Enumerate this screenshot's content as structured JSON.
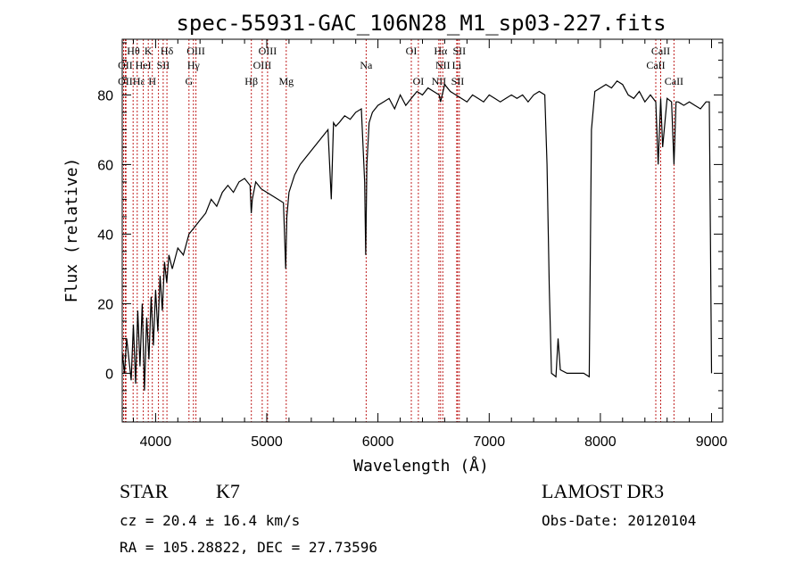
{
  "chart_data": {
    "type": "line",
    "title": "spec-55931-GAC_106N28_M1_sp03-227.fits",
    "xlabel": "Wavelength (Å)",
    "ylabel": "Flux (relative)",
    "xlim": [
      3700,
      9100
    ],
    "ylim": [
      -14,
      96
    ],
    "xticks": [
      4000,
      5000,
      6000,
      7000,
      8000,
      9000
    ],
    "yticks": [
      0,
      20,
      40,
      60,
      80
    ],
    "grid": false,
    "series": [
      {
        "x": [
          3700,
          3720,
          3740,
          3760,
          3780,
          3800,
          3820,
          3840,
          3860,
          3880,
          3900,
          3920,
          3940,
          3960,
          3980,
          4000,
          4020,
          4040,
          4060,
          4080,
          4100,
          4120,
          4150,
          4200,
          4250,
          4300,
          4350,
          4400,
          4450,
          4500,
          4550,
          4600,
          4650,
          4700,
          4750,
          4800,
          4850,
          4860,
          4870,
          4900,
          4950,
          5000,
          5050,
          5100,
          5150,
          5170,
          5180,
          5200,
          5250,
          5300,
          5350,
          5400,
          5450,
          5500,
          5550,
          5580,
          5600,
          5620,
          5650,
          5700,
          5750,
          5800,
          5850,
          5880,
          5890,
          5900,
          5920,
          5950,
          6000,
          6050,
          6100,
          6150,
          6200,
          6250,
          6300,
          6350,
          6400,
          6450,
          6500,
          6550,
          6563,
          6600,
          6650,
          6700,
          6750,
          6800,
          6850,
          6900,
          6950,
          7000,
          7050,
          7100,
          7150,
          7200,
          7250,
          7300,
          7350,
          7400,
          7450,
          7500,
          7520,
          7540,
          7560,
          7600,
          7620,
          7640,
          7700,
          7800,
          7850,
          7900,
          7920,
          7950,
          8000,
          8050,
          8100,
          8150,
          8200,
          8250,
          8300,
          8350,
          8400,
          8450,
          8498,
          8520,
          8542,
          8560,
          8600,
          8640,
          8662,
          8680,
          8700,
          8750,
          8800,
          8850,
          8900,
          8950,
          8980,
          9000
        ],
        "y": [
          6,
          0,
          10,
          4,
          -2,
          14,
          -3,
          18,
          2,
          20,
          -5,
          16,
          4,
          22,
          8,
          24,
          12,
          28,
          18,
          32,
          26,
          34,
          30,
          36,
          34,
          40,
          42,
          44,
          46,
          50,
          48,
          52,
          54,
          52,
          55,
          56,
          54,
          46,
          50,
          55,
          53,
          52,
          51,
          50,
          49,
          30,
          45,
          52,
          57,
          60,
          62,
          64,
          66,
          68,
          70,
          50,
          72,
          71,
          72,
          74,
          73,
          75,
          76,
          55,
          34,
          60,
          72,
          75,
          77,
          78,
          79,
          76,
          80,
          77,
          79,
          81,
          80,
          82,
          81,
          80,
          78,
          83,
          81,
          80,
          79,
          78,
          80,
          79,
          78,
          80,
          79,
          78,
          79,
          80,
          79,
          80,
          78,
          80,
          81,
          80,
          60,
          25,
          0,
          -1,
          10,
          1,
          0,
          0,
          0,
          -1,
          70,
          81,
          82,
          83,
          82,
          84,
          83,
          80,
          79,
          81,
          78,
          80,
          78,
          60,
          79,
          65,
          79,
          78,
          60,
          78,
          78,
          77,
          78,
          77,
          76,
          78,
          78,
          0
        ]
      }
    ],
    "lines": [
      {
        "x": 3712,
        "color": "#c02020"
      },
      {
        "x": 3727,
        "color": "#c02020"
      },
      {
        "x": 3734,
        "color": "#c02020"
      },
      {
        "x": 3798,
        "color": "#c02020"
      },
      {
        "x": 3835,
        "color": "#c02020"
      },
      {
        "x": 3889,
        "color": "#c02020"
      },
      {
        "x": 3934,
        "color": "#c02020"
      },
      {
        "x": 3970,
        "color": "#c02020"
      },
      {
        "x": 4026,
        "color": "#c02020"
      },
      {
        "x": 4068,
        "color": "#c02020"
      },
      {
        "x": 4102,
        "color": "#c02020"
      },
      {
        "x": 4300,
        "color": "#c02020"
      },
      {
        "x": 4340,
        "color": "#c02020"
      },
      {
        "x": 4363,
        "color": "#c02020"
      },
      {
        "x": 4861,
        "color": "#c02020"
      },
      {
        "x": 4959,
        "color": "#c02020"
      },
      {
        "x": 5007,
        "color": "#c02020"
      },
      {
        "x": 5175,
        "color": "#c02020"
      },
      {
        "x": 5894,
        "color": "#c02020"
      },
      {
        "x": 6300,
        "color": "#c02020"
      },
      {
        "x": 6363,
        "color": "#c02020"
      },
      {
        "x": 6548,
        "color": "#c02020"
      },
      {
        "x": 6563,
        "color": "#c02020"
      },
      {
        "x": 6583,
        "color": "#c02020"
      },
      {
        "x": 6708,
        "color": "#c02020"
      },
      {
        "x": 6716,
        "color": "#c02020"
      },
      {
        "x": 6731,
        "color": "#c02020"
      },
      {
        "x": 8498,
        "color": "#c02020"
      },
      {
        "x": 8542,
        "color": "#c02020"
      },
      {
        "x": 8662,
        "color": "#c02020"
      }
    ],
    "line_labels": [
      {
        "text": "Hθ",
        "x": 3800,
        "row": 1
      },
      {
        "text": "K",
        "x": 3934,
        "row": 1
      },
      {
        "text": "Hδ",
        "x": 4102,
        "row": 1
      },
      {
        "text": "OIII",
        "x": 4363,
        "row": 1
      },
      {
        "text": "OIII",
        "x": 5007,
        "row": 1
      },
      {
        "text": "OI",
        "x": 6300,
        "row": 1
      },
      {
        "text": "Hα",
        "x": 6563,
        "row": 1
      },
      {
        "text": "SII",
        "x": 6731,
        "row": 1
      },
      {
        "text": "CaII",
        "x": 8542,
        "row": 1
      },
      {
        "text": "OII",
        "x": 3727,
        "row": 2
      },
      {
        "text": "HeI",
        "x": 3889,
        "row": 2
      },
      {
        "text": "SII",
        "x": 4068,
        "row": 2
      },
      {
        "text": "Hγ",
        "x": 4340,
        "row": 2
      },
      {
        "text": "OIII",
        "x": 4959,
        "row": 2
      },
      {
        "text": "Na",
        "x": 5894,
        "row": 2
      },
      {
        "text": "NII",
        "x": 6583,
        "row": 2
      },
      {
        "text": "Li",
        "x": 6708,
        "row": 2
      },
      {
        "text": "CaII",
        "x": 8498,
        "row": 2
      },
      {
        "text": "OII",
        "x": 3727,
        "row": 3
      },
      {
        "text": "Hε",
        "x": 3850,
        "row": 3
      },
      {
        "text": "H",
        "x": 3970,
        "row": 3
      },
      {
        "text": "G",
        "x": 4300,
        "row": 3
      },
      {
        "text": "Hβ",
        "x": 4861,
        "row": 3
      },
      {
        "text": "Mg",
        "x": 5175,
        "row": 3
      },
      {
        "text": "OI",
        "x": 6363,
        "row": 3
      },
      {
        "text": "NII",
        "x": 6548,
        "row": 3
      },
      {
        "text": "SII",
        "x": 6716,
        "row": 3
      },
      {
        "text": "CaII",
        "x": 8662,
        "row": 3
      }
    ]
  },
  "info": {
    "object_class": "STAR",
    "subclass": "K7",
    "survey": "LAMOST DR3",
    "redshift": "cz = 20.4 ± 16.4 km/s",
    "obs_date": "Obs-Date: 20120104",
    "coords": "RA = 105.28822, DEC =  27.73596"
  }
}
